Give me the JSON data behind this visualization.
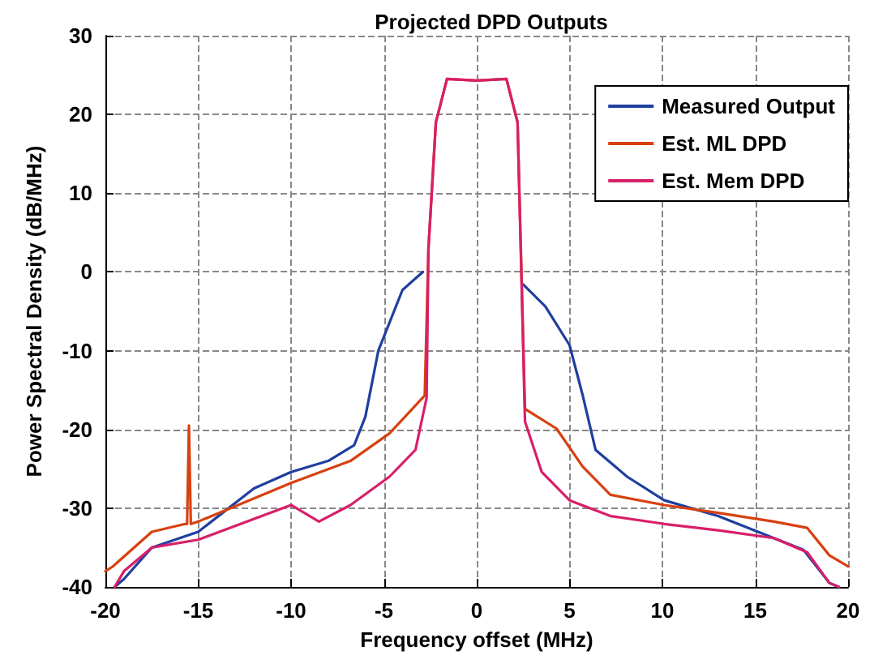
{
  "chart_data": {
    "type": "line",
    "title": "Projected DPD Outputs",
    "xlabel": "Frequency offset (MHz)",
    "ylabel": "Power Spectral Density (dB/MHz)",
    "xlim": [
      -20,
      20
    ],
    "xticks": [
      -20,
      -15,
      -10,
      -5,
      0,
      5,
      10,
      15,
      20
    ],
    "ylim": [
      -40,
      30
    ],
    "yticks": [
      -40,
      -30,
      -20,
      -10,
      0,
      10,
      20,
      30
    ],
    "grid": true,
    "legend": "top right",
    "marker": "none",
    "line_style": "solid",
    "series": [
      {
        "name": "Measured Output",
        "color": "#1f3fa0",
        "x": [
          -19.5,
          -19,
          -17.5,
          -15,
          -12,
          -10,
          -8,
          -6.6,
          -6,
          -5.3,
          -4,
          -2.9,
          -2.6,
          -2.2,
          -1.6,
          0,
          1.6,
          2.2,
          2.5,
          3.7,
          5,
          5.7,
          6.4,
          8.1,
          10.1,
          13,
          16,
          17.6,
          19,
          19.5
        ],
        "values": [
          -40,
          -39,
          -35,
          -33,
          -27.5,
          -25.4,
          -24,
          -22,
          -18.4,
          -10,
          -2.3,
          0,
          null,
          null,
          null,
          null,
          null,
          null,
          -1.6,
          -4.4,
          -9.3,
          -15.6,
          -22.6,
          -26,
          -29,
          -31,
          -33.8,
          -35.3,
          -39.5,
          -40
        ]
      },
      {
        "name": "Est. ML DPD",
        "color": "#d84010",
        "x": [
          -20,
          -19.6,
          -17.5,
          -15.7,
          -15.6,
          -15.5,
          -15.4,
          -15,
          -10,
          -6.8,
          -4.7,
          -2.8,
          -2.6,
          -2.2,
          -1.6,
          0,
          1.6,
          2.2,
          2.6,
          4.3,
          5.7,
          7.2,
          10.1,
          13,
          16,
          17.8,
          19,
          20
        ],
        "values": [
          -38,
          -37.4,
          -33,
          -32,
          -32,
          -19.5,
          -32,
          -31.7,
          -26.8,
          -24,
          -20.5,
          -15.7,
          3,
          19,
          24.5,
          24.3,
          24.5,
          19,
          -17.4,
          -19.9,
          -24.7,
          -28.3,
          -29.6,
          -30.6,
          -31.7,
          -32.5,
          -36,
          -37.4
        ]
      },
      {
        "name": "Est. Mem DPD",
        "color": "#d81f6a",
        "x": [
          -19.5,
          -19,
          -17.5,
          -15,
          -10,
          -8.5,
          -6.8,
          -4.7,
          -3.3,
          -2.7,
          -2.6,
          -2.2,
          -1.6,
          0,
          1.6,
          2.2,
          2.6,
          3.5,
          5,
          7.2,
          10.1,
          13,
          16,
          17.8,
          19,
          19.5
        ],
        "values": [
          -40,
          -38,
          -35,
          -34,
          -29.6,
          -31.7,
          -29.6,
          -26,
          -22.6,
          -16,
          3,
          19,
          24.5,
          24.3,
          24.5,
          19,
          -19,
          -25.4,
          -29,
          -31,
          -32,
          -32.8,
          -33.8,
          -35.6,
          -39.5,
          -40
        ]
      }
    ]
  }
}
